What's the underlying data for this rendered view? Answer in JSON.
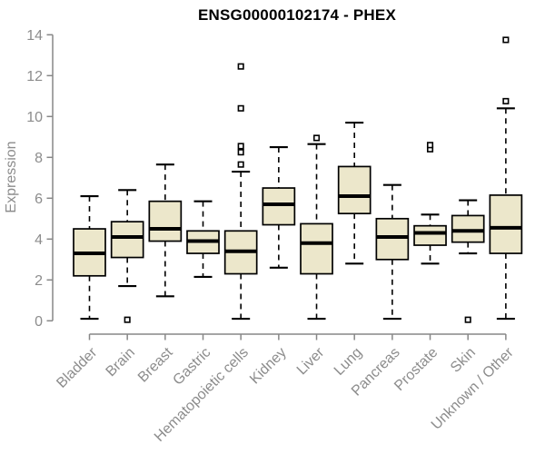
{
  "chart_data": {
    "type": "boxplot",
    "title": "ENSG00000102174 - PHEX",
    "xlabel": "",
    "ylabel": "Expression",
    "ylim": [
      0,
      14
    ],
    "yticks": [
      0,
      2,
      4,
      6,
      8,
      10,
      12,
      14
    ],
    "grid": false,
    "legend": "none",
    "categories": [
      "Bladder",
      "Brain",
      "Breast",
      "Gastric",
      "Hematopoietic cells",
      "Kidney",
      "Liver",
      "Lung",
      "Pancreas",
      "Prostate",
      "Skin",
      "Unknown / Other"
    ],
    "series": [
      {
        "name": "Bladder",
        "low": 0.1,
        "q1": 2.2,
        "median": 3.3,
        "q3": 4.5,
        "high": 6.1,
        "outliers": []
      },
      {
        "name": "Brain",
        "low": 1.7,
        "q1": 3.1,
        "median": 4.1,
        "q3": 4.85,
        "high": 6.4,
        "outliers": [
          0.05
        ]
      },
      {
        "name": "Breast",
        "low": 1.2,
        "q1": 3.9,
        "median": 4.5,
        "q3": 5.85,
        "high": 7.65,
        "outliers": []
      },
      {
        "name": "Gastric",
        "low": 2.15,
        "q1": 3.3,
        "median": 3.9,
        "q3": 4.4,
        "high": 5.85,
        "outliers": []
      },
      {
        "name": "Hematopoietic cells",
        "low": 0.1,
        "q1": 2.3,
        "median": 3.4,
        "q3": 4.4,
        "high": 7.3,
        "outliers": [
          7.65,
          8.25,
          8.55,
          10.4,
          12.45
        ]
      },
      {
        "name": "Kidney",
        "low": 2.6,
        "q1": 4.7,
        "median": 5.7,
        "q3": 6.5,
        "high": 8.5,
        "outliers": []
      },
      {
        "name": "Liver",
        "low": 0.1,
        "q1": 2.3,
        "median": 3.8,
        "q3": 4.75,
        "high": 8.65,
        "outliers": [
          8.95
        ]
      },
      {
        "name": "Lung",
        "low": 2.8,
        "q1": 5.25,
        "median": 6.1,
        "q3": 7.55,
        "high": 9.7,
        "outliers": []
      },
      {
        "name": "Pancreas",
        "low": 0.1,
        "q1": 3.0,
        "median": 4.1,
        "q3": 5.0,
        "high": 6.65,
        "outliers": []
      },
      {
        "name": "Prostate",
        "low": 2.8,
        "q1": 3.7,
        "median": 4.3,
        "q3": 4.65,
        "high": 5.2,
        "outliers": [
          8.4,
          8.6
        ]
      },
      {
        "name": "Skin",
        "low": 3.3,
        "q1": 3.85,
        "median": 4.4,
        "q3": 5.15,
        "high": 5.9,
        "outliers": [
          0.05
        ]
      },
      {
        "name": "Unknown / Other",
        "low": 0.1,
        "q1": 3.3,
        "median": 4.55,
        "q3": 6.15,
        "high": 10.4,
        "outliers": [
          10.75,
          13.75
        ]
      }
    ],
    "colors": {
      "background": "#ffffff",
      "box_fill": "#ece7cb",
      "box_stroke": "#000000",
      "median": "#000000",
      "whisker": "#000000",
      "outlier_stroke": "#000000",
      "outlier_fill": "#ffffff",
      "axis": "#878787",
      "tick_label": "#8c8c8c",
      "title": "#000000"
    }
  }
}
